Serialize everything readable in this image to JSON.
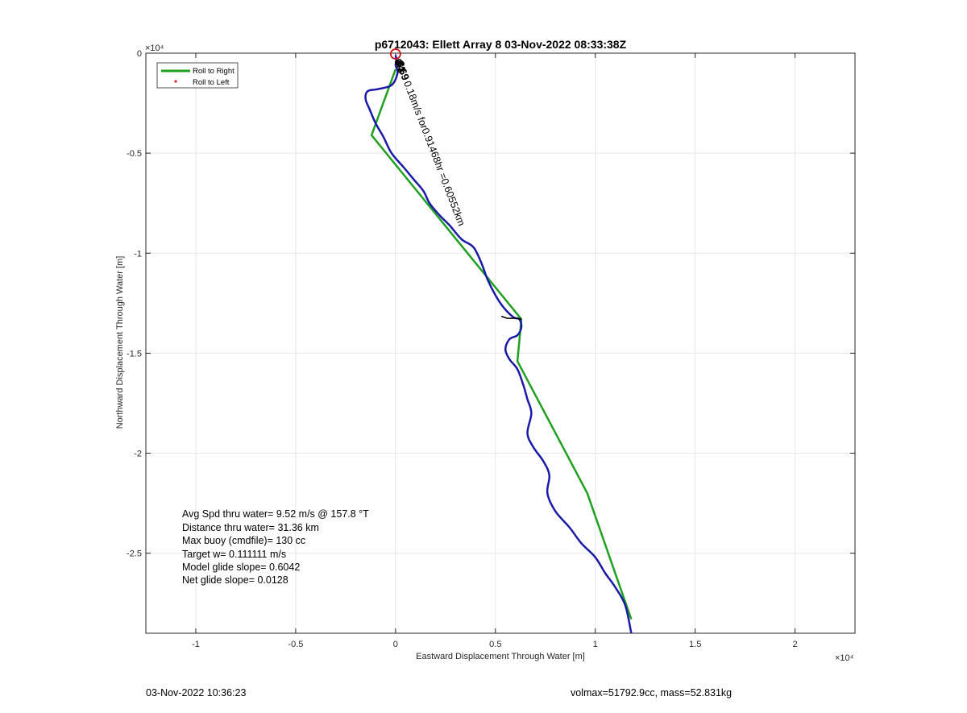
{
  "chart_data": {
    "type": "line",
    "title": "p6712043: Ellett Array 8 03-Nov-2022 08:33:38Z",
    "xlabel": "Eastward Displacement Through Water [m]",
    "ylabel": "Northward Displacement Through Water [m]",
    "x_exponent_label": "×10⁴",
    "y_exponent_label": "×10⁴",
    "xlim": [
      -12500,
      23000
    ],
    "ylim": [
      -29000,
      0
    ],
    "xticks": [
      -10000,
      -5000,
      0,
      5000,
      10000,
      15000,
      20000
    ],
    "xtick_labels": [
      "-1",
      "-0.5",
      "0",
      "0.5",
      "1",
      "1.5",
      "2"
    ],
    "yticks": [
      0,
      -5000,
      -10000,
      -15000,
      -20000,
      -25000
    ],
    "ytick_labels": [
      "0",
      "-0.5",
      "-1",
      "-1.5",
      "-2",
      "-2.5"
    ],
    "grid": true,
    "legend_position": "top-left",
    "legend": [
      {
        "label": "Roll to Right",
        "color": "#20a020",
        "style": "line"
      },
      {
        "label": "Roll to Left",
        "color": "#e02020",
        "style": "dot"
      }
    ],
    "series": [
      {
        "name": "Roll to Right",
        "color": "#20a020",
        "x": [
          0,
          -1200,
          3200,
          6300,
          6100,
          9600,
          11800
        ],
        "y": [
          -800,
          -4100,
          -9500,
          -13300,
          -15400,
          -22000,
          -28300
        ]
      },
      {
        "color": "#1a1aa8",
        "x": [
          0,
          50,
          0,
          100,
          -200,
          -900,
          -1400,
          -1500,
          -1300,
          -1000,
          -600,
          -200,
          400,
          900,
          1400,
          1700,
          2200,
          2700,
          3300,
          3900,
          4300,
          4600,
          5000,
          5400,
          5900,
          6200,
          6300,
          6100,
          5700,
          5500,
          5700,
          6100,
          6400,
          6600,
          6800,
          6600,
          6900,
          7400,
          7700,
          7600,
          8000,
          8700,
          9300,
          10000,
          10500,
          11000,
          11500,
          11800
        ],
        "y": [
          -100,
          -400,
          -600,
          -1000,
          -1600,
          -1800,
          -1900,
          -2300,
          -2800,
          -3500,
          -4200,
          -5000,
          -5700,
          -6300,
          -6900,
          -7500,
          -8100,
          -8600,
          -9300,
          -9700,
          -10500,
          -11300,
          -12100,
          -12700,
          -13200,
          -13300,
          -13700,
          -14100,
          -14300,
          -14800,
          -15300,
          -15800,
          -16600,
          -17300,
          -18000,
          -19000,
          -19700,
          -20400,
          -21100,
          -22000,
          -22900,
          -23700,
          -24500,
          -25200,
          -26000,
          -26700,
          -27600,
          -29000
        ]
      }
    ],
    "highlight_segment": {
      "color": "#000000",
      "x": [
        5300,
        5600,
        6000,
        6300
      ],
      "y": [
        -13150,
        -13250,
        -13250,
        -13300
      ]
    },
    "start_marker": {
      "x": 0,
      "y": 0,
      "color": "#d01010"
    },
    "rotated_label": {
      "x": 0,
      "y": -100,
      "angle_deg": 69,
      "text": "0.18m/s for0.91468hr =0.60552km"
    },
    "overlap_labels": {
      "x": 0,
      "y": -200,
      "items": [
        "0.3",
        "44",
        "0.69",
        "8"
      ]
    },
    "annotations": [
      "Avg Spd thru water=  9.52 m/s @ 157.8 °T",
      "Distance thru water= 31.36 km",
      "Max buoy (cmdfile)= 130 cc",
      "Target w= 0.111111 m/s",
      "Model glide slope= 0.6042",
      "Net glide slope= 0.0128"
    ]
  },
  "footer": {
    "left": "03-Nov-2022 10:36:23",
    "right": "volmax=51792.9cc, mass=52.831kg"
  }
}
